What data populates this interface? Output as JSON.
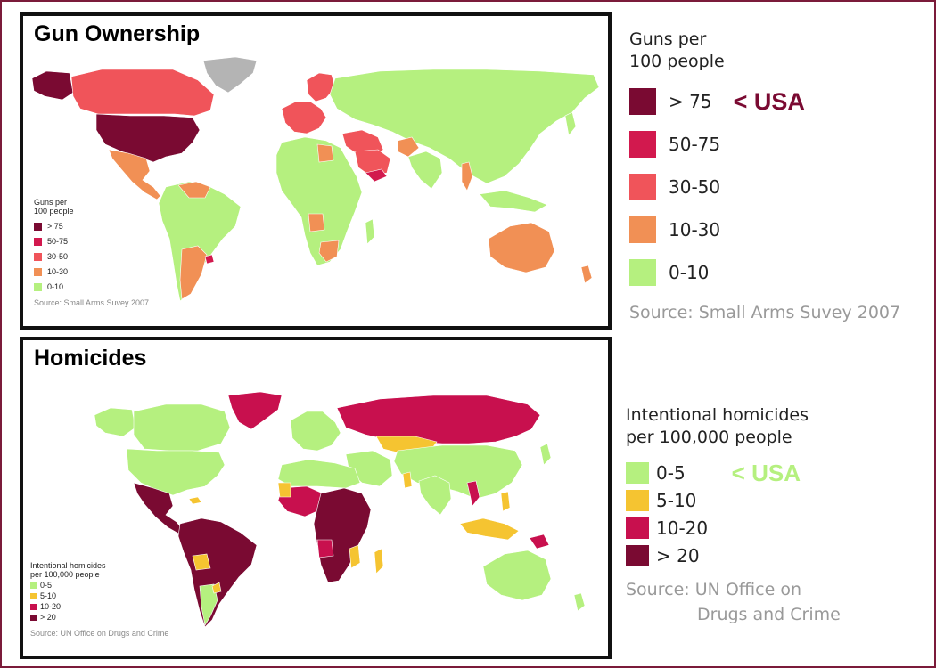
{
  "colors": {
    "gun_gt75": "#7a0a32",
    "gun_50_75": "#d2194e",
    "gun_30_50": "#f0545a",
    "gun_10_30": "#f19055",
    "gun_0_10": "#b5f07f",
    "no_data": "#b4b4b4",
    "hom_0_5": "#b5f07f",
    "hom_5_10": "#f5c431",
    "hom_10_20": "#c8104e",
    "hom_gt20": "#7a0a32",
    "usa_gun_label": "#7a0a32",
    "usa_hom_label": "#b5f07f",
    "frame": "#7b1b3a"
  },
  "gun": {
    "title": "Gun Ownership",
    "legend_title_line1": "Guns per",
    "legend_title_line2": "100 people",
    "classes": [
      {
        "label": "> 75",
        "color": "#7a0a32"
      },
      {
        "label": "50-75",
        "color": "#d2194e"
      },
      {
        "label": "30-50",
        "color": "#f0545a"
      },
      {
        "label": "10-30",
        "color": "#f19055"
      },
      {
        "label": "0-10",
        "color": "#b5f07f"
      }
    ],
    "source": "Source: Small Arms Suvey 2007",
    "usa_marker": "< USA"
  },
  "homicide": {
    "title": "Homicides",
    "legend_title_line1": "Intentional homicides",
    "legend_title_line2": "per 100,000 people",
    "classes": [
      {
        "label": "0-5",
        "color": "#b5f07f"
      },
      {
        "label": "5-10",
        "color": "#f5c431"
      },
      {
        "label": "10-20",
        "color": "#c8104e"
      },
      {
        "label": "> 20",
        "color": "#7a0a32"
      }
    ],
    "source_line1": "Source: UN Office on",
    "source_line2": "Drugs and Crime",
    "mini_source": "Source: UN Office on Drugs and Crime",
    "usa_marker": "< USA"
  }
}
